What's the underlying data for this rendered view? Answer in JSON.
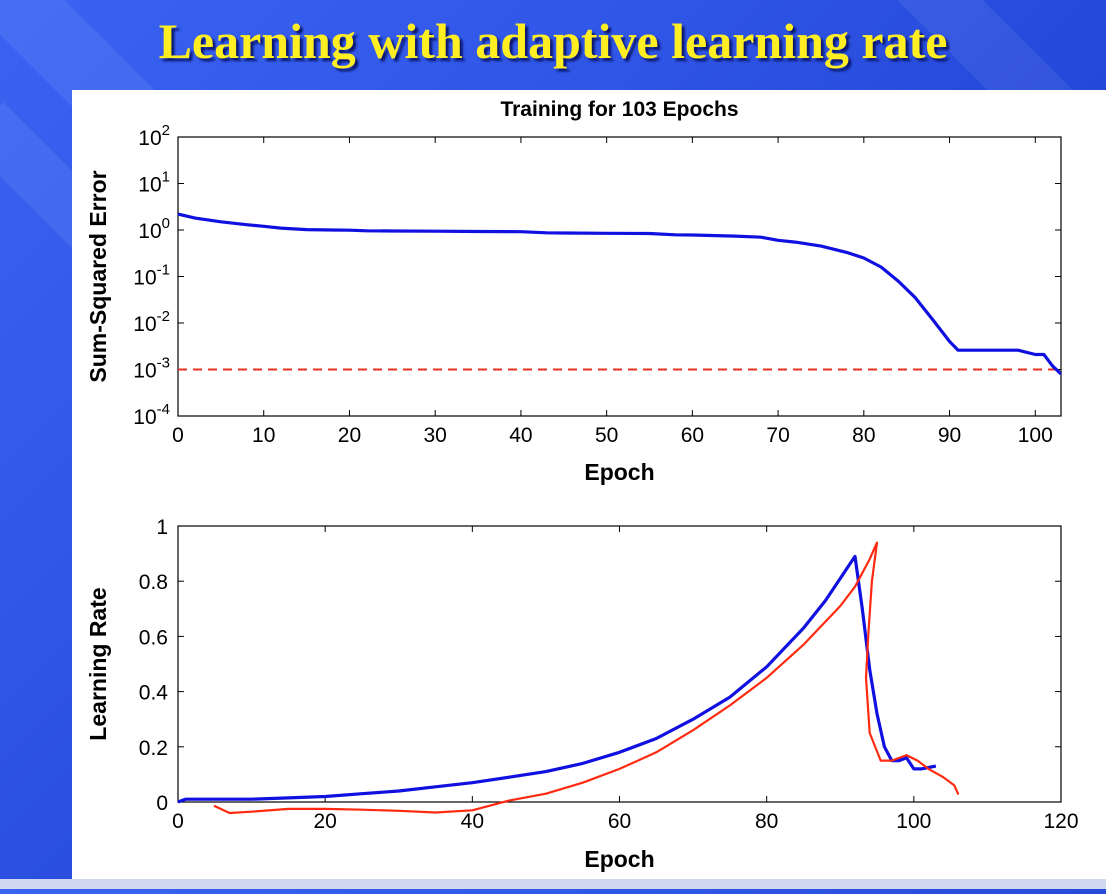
{
  "slide": {
    "title": "Learning with adaptive learning rate"
  },
  "colors": {
    "series": "#1010e0",
    "goal": "#e83020",
    "annotation": "#ff2a10"
  },
  "chart_data": [
    {
      "type": "line",
      "title": "Training for 103 Epochs",
      "xlabel": "Epoch",
      "ylabel": "Sum-Squared Error",
      "yscale": "log",
      "xlim": [
        0,
        103
      ],
      "ylim": [
        0.0001,
        100
      ],
      "xticks": [
        0,
        10,
        20,
        30,
        40,
        50,
        60,
        70,
        80,
        90,
        100
      ],
      "yticks": [
        {
          "base": "10",
          "exp": "2"
        },
        {
          "base": "10",
          "exp": "1"
        },
        {
          "base": "10",
          "exp": "0"
        },
        {
          "base": "10",
          "exp": "-1"
        },
        {
          "base": "10",
          "exp": "-2"
        },
        {
          "base": "10",
          "exp": "-3"
        },
        {
          "base": "10",
          "exp": "-4"
        }
      ],
      "goal": 0.001,
      "series": [
        {
          "x": [
            0,
            2,
            5,
            8,
            10,
            12,
            15,
            18,
            20,
            22,
            25,
            30,
            35,
            40,
            43,
            45,
            50,
            55,
            58,
            60,
            65,
            68,
            70,
            72,
            75,
            78,
            80,
            82,
            84,
            86,
            88,
            90,
            91,
            93,
            96,
            98,
            100,
            101,
            102,
            103
          ],
          "y": [
            2.2,
            1.8,
            1.5,
            1.3,
            1.2,
            1.1,
            1.02,
            1.0,
            0.99,
            0.96,
            0.95,
            0.94,
            0.93,
            0.92,
            0.87,
            0.86,
            0.85,
            0.84,
            0.79,
            0.78,
            0.74,
            0.7,
            0.6,
            0.55,
            0.45,
            0.33,
            0.25,
            0.16,
            0.08,
            0.035,
            0.012,
            0.004,
            0.0026,
            0.0026,
            0.0026,
            0.0026,
            0.0021,
            0.0021,
            0.0012,
            0.0008
          ]
        }
      ]
    },
    {
      "type": "line",
      "xlabel": "Epoch",
      "ylabel": "Learning Rate",
      "xlim": [
        0,
        120
      ],
      "ylim": [
        0,
        1
      ],
      "xticks": [
        0,
        20,
        40,
        60,
        80,
        100,
        120
      ],
      "yticks": [
        0,
        0.2,
        0.4,
        0.6,
        0.8,
        1
      ],
      "series": [
        {
          "x": [
            0,
            1,
            5,
            10,
            15,
            20,
            25,
            30,
            35,
            40,
            45,
            50,
            55,
            60,
            65,
            70,
            75,
            80,
            85,
            88,
            90,
            91,
            92,
            93,
            94,
            95,
            96,
            97,
            98,
            99,
            100,
            101,
            102,
            103
          ],
          "y": [
            0,
            0.01,
            0.01,
            0.01,
            0.015,
            0.02,
            0.03,
            0.04,
            0.055,
            0.07,
            0.09,
            0.11,
            0.14,
            0.18,
            0.23,
            0.3,
            0.38,
            0.49,
            0.63,
            0.73,
            0.81,
            0.85,
            0.89,
            0.7,
            0.48,
            0.32,
            0.2,
            0.15,
            0.15,
            0.16,
            0.12,
            0.12,
            0.125,
            0.13
          ]
        }
      ],
      "annotation": {
        "x": [
          5,
          7,
          10,
          15,
          20,
          25,
          30,
          35,
          40,
          45,
          50,
          55,
          60,
          65,
          70,
          75,
          80,
          85,
          90,
          92,
          94,
          95,
          94.3,
          93.8,
          93.5,
          94,
          95.5,
          97,
          99,
          100.5,
          102,
          104,
          105.5,
          106
        ],
        "y": [
          -0.015,
          -0.04,
          -0.035,
          -0.025,
          -0.025,
          -0.028,
          -0.032,
          -0.038,
          -0.03,
          0.005,
          0.03,
          0.07,
          0.12,
          0.18,
          0.26,
          0.35,
          0.45,
          0.57,
          0.71,
          0.78,
          0.88,
          0.94,
          0.8,
          0.6,
          0.45,
          0.25,
          0.15,
          0.15,
          0.17,
          0.15,
          0.12,
          0.09,
          0.06,
          0.03
        ]
      }
    }
  ]
}
